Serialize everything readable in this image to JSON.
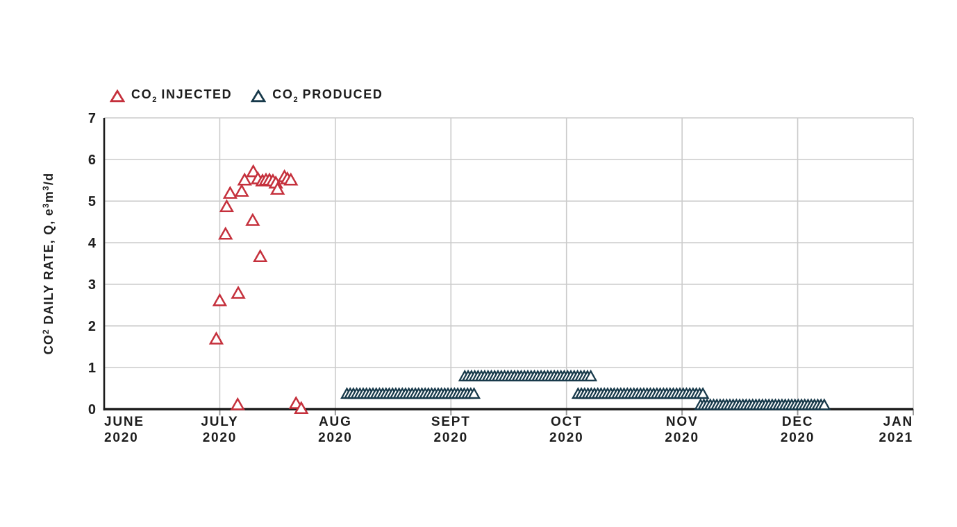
{
  "chart_data": {
    "type": "scatter",
    "x_unit": "months since JUNE 2020 tick (0 = JUNE 2020, 7 = JAN 2021)",
    "xlim_months": [
      0,
      7
    ],
    "ylim": [
      0,
      7
    ],
    "y_ticks": [
      0,
      1,
      2,
      3,
      4,
      5,
      6,
      7
    ],
    "x_ticks": [
      {
        "month": "JUNE",
        "year": "2020"
      },
      {
        "month": "JULY",
        "year": "2020"
      },
      {
        "month": "AUG",
        "year": "2020"
      },
      {
        "month": "SEPT",
        "year": "2020"
      },
      {
        "month": "OCT",
        "year": "2020"
      },
      {
        "month": "NOV",
        "year": "2020"
      },
      {
        "month": "DEC",
        "year": "2020"
      },
      {
        "month": "JAN",
        "year": "2021"
      }
    ],
    "ylabel_segments": [
      {
        "t": "CO"
      },
      {
        "t": "2",
        "sup": true
      },
      {
        "t": " DAILY RATE, Q, e"
      },
      {
        "t": "3",
        "sup": true
      },
      {
        "t": "m"
      },
      {
        "t": "3",
        "sup": true
      },
      {
        "t": "/d"
      }
    ],
    "grid": true,
    "legend_position": "top-left",
    "legend": [
      {
        "id": "injected",
        "color": "#C5303C",
        "segments": [
          {
            "t": "CO"
          },
          {
            "t": "2",
            "sub": true
          },
          {
            "t": " INJECTED"
          }
        ]
      },
      {
        "id": "produced",
        "color": "#17394A",
        "segments": [
          {
            "t": "CO"
          },
          {
            "t": "2",
            "sub": true
          },
          {
            "t": " PRODUCED"
          }
        ]
      }
    ],
    "series": [
      {
        "name": "CO2 INJECTED",
        "color": "#C5303C",
        "marker": "triangle-up-open",
        "points": [
          [
            0.97,
            1.7
          ],
          [
            1.0,
            2.62
          ],
          [
            1.05,
            4.22
          ],
          [
            1.06,
            4.88
          ],
          [
            1.09,
            5.2
          ],
          [
            1.155,
            0.12
          ],
          [
            1.16,
            2.8
          ],
          [
            1.19,
            5.25
          ],
          [
            1.215,
            5.52
          ],
          [
            1.285,
            4.55
          ],
          [
            1.29,
            5.72
          ],
          [
            1.33,
            5.55
          ],
          [
            1.35,
            3.68
          ],
          [
            1.37,
            5.5
          ],
          [
            1.4,
            5.52
          ],
          [
            1.43,
            5.52
          ],
          [
            1.46,
            5.5
          ],
          [
            1.485,
            5.45
          ],
          [
            1.5,
            5.3
          ],
          [
            1.56,
            5.6
          ],
          [
            1.585,
            5.55
          ],
          [
            1.615,
            5.52
          ],
          [
            1.66,
            0.15
          ],
          [
            1.705,
            0.03
          ]
        ]
      },
      {
        "name": "CO2 PRODUCED",
        "color": "#17394A",
        "marker": "triangle-up-open",
        "bands": [
          {
            "start": 2.1,
            "end": 3.2,
            "value": 0.38,
            "count": 40
          },
          {
            "start": 3.12,
            "end": 4.21,
            "value": 0.8,
            "count": 39
          },
          {
            "start": 4.1,
            "end": 5.18,
            "value": 0.38,
            "count": 39
          },
          {
            "start": 5.16,
            "end": 6.23,
            "value": 0.11,
            "count": 39
          }
        ]
      }
    ],
    "colors": {
      "injected": "#C5303C",
      "produced": "#17394A",
      "grid": "#cbcbcb",
      "axis": "#1c1c1c",
      "tick": "#9b9b9b",
      "text": "#1d1d1d",
      "background": "#ffffff"
    }
  }
}
